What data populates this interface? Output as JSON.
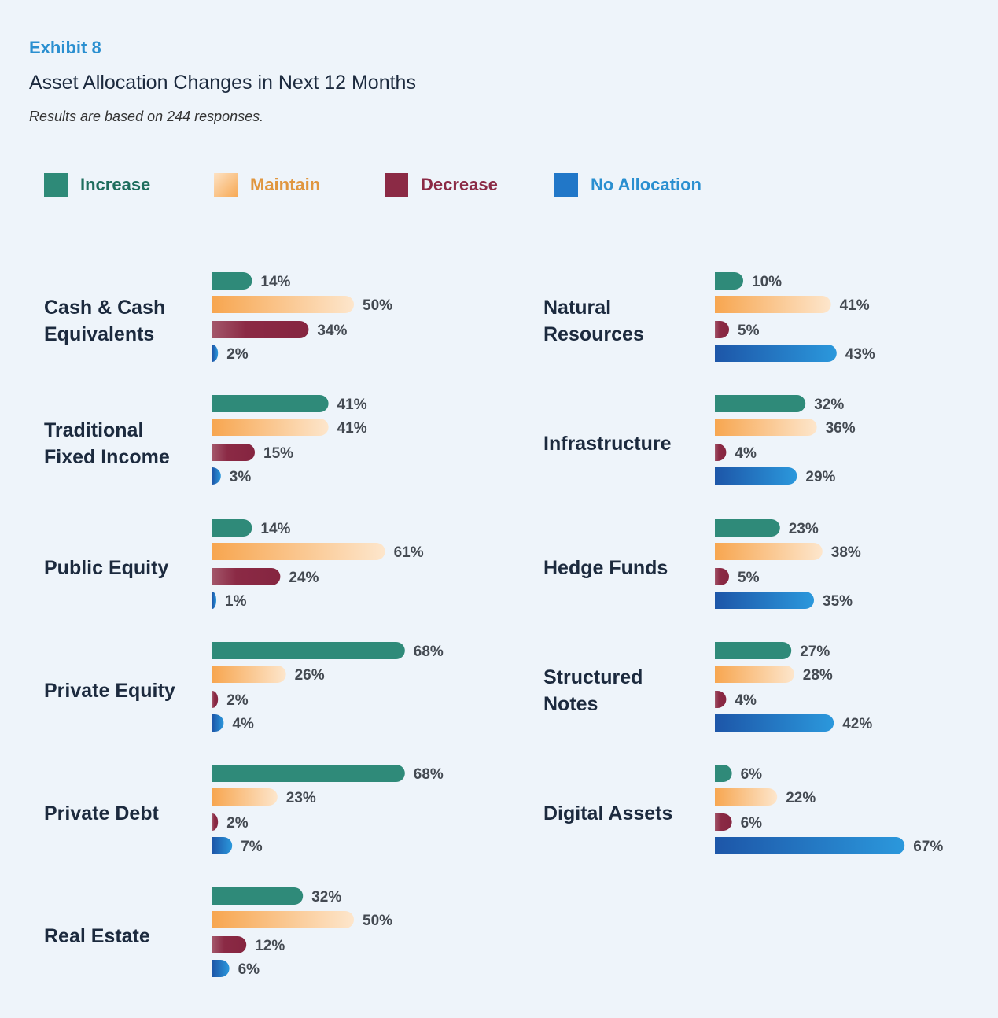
{
  "header": {
    "exhibit": "Exhibit 8",
    "title": "Asset Allocation Changes in Next 12 Months",
    "subtitle": "Results are based on 244 responses."
  },
  "legend": [
    {
      "label": "Increase",
      "color": "#2e8a78",
      "text_color": "#1f6e5e"
    },
    {
      "label": "Maintain",
      "color": "#f7a955",
      "text_color": "#e0963f"
    },
    {
      "label": "Decrease",
      "color": "#8b2a45",
      "text_color": "#8b2a45"
    },
    {
      "label": "No Allocation",
      "color": "#2177c8",
      "text_color": "#2a8fd0"
    }
  ],
  "chart_data": {
    "type": "bar",
    "orientation": "horizontal",
    "title": "Asset Allocation Changes in Next 12 Months",
    "series_names": [
      "Increase",
      "Maintain",
      "Decrease",
      "No Allocation"
    ],
    "unit": "%",
    "panels": [
      {
        "label_lines": [
          "Cash & Cash",
          "Equivalents"
        ],
        "values": [
          14,
          50,
          34,
          2
        ]
      },
      {
        "label_lines": [
          "Natural",
          "Resources"
        ],
        "values": [
          10,
          41,
          5,
          43
        ]
      },
      {
        "label_lines": [
          "Traditional",
          "Fixed Income"
        ],
        "values": [
          41,
          41,
          15,
          3
        ]
      },
      {
        "label_lines": [
          "Infrastructure"
        ],
        "values": [
          32,
          36,
          4,
          29
        ]
      },
      {
        "label_lines": [
          "Public Equity"
        ],
        "values": [
          14,
          61,
          24,
          1
        ]
      },
      {
        "label_lines": [
          "Hedge Funds"
        ],
        "values": [
          23,
          38,
          5,
          35
        ]
      },
      {
        "label_lines": [
          "Private Equity"
        ],
        "values": [
          68,
          26,
          2,
          4
        ]
      },
      {
        "label_lines": [
          "Structured",
          "Notes"
        ],
        "values": [
          27,
          28,
          4,
          42
        ]
      },
      {
        "label_lines": [
          "Private Debt"
        ],
        "values": [
          68,
          23,
          2,
          7
        ]
      },
      {
        "label_lines": [
          "Digital Assets"
        ],
        "values": [
          6,
          22,
          6,
          67
        ]
      },
      {
        "label_lines": [
          "Real Estate"
        ],
        "values": [
          32,
          50,
          12,
          6
        ]
      }
    ]
  }
}
